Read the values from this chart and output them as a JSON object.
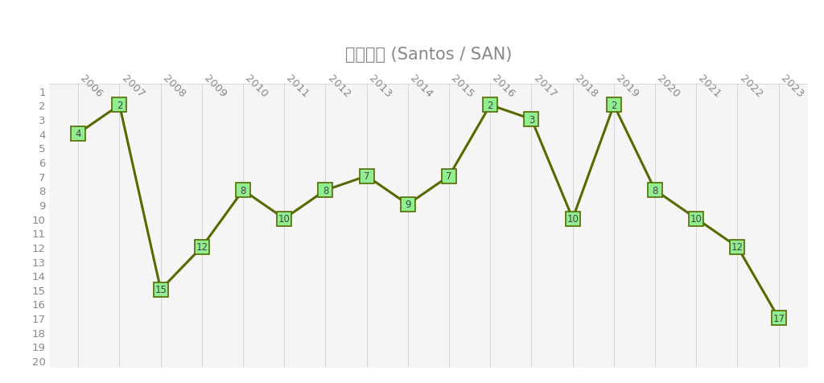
{
  "title": "サントス (Santos / SAN)",
  "years": [
    2006,
    2007,
    2008,
    2009,
    2010,
    2011,
    2012,
    2013,
    2014,
    2015,
    2016,
    2017,
    2018,
    2019,
    2020,
    2021,
    2022,
    2023
  ],
  "ranks": [
    4,
    2,
    15,
    12,
    8,
    10,
    8,
    7,
    9,
    7,
    2,
    3,
    10,
    2,
    8,
    10,
    12,
    17
  ],
  "ylim_min": 1,
  "ylim_max": 20,
  "line_color": "#556B00",
  "marker_bg_color": "#90EE90",
  "marker_edge_color": "#556B00",
  "label_text_color": "#444444",
  "bg_color": "#ffffff",
  "plot_bg_color": "#f5f5f5",
  "grid_color": "#d8d8d8",
  "title_fontsize": 15,
  "tick_label_fontsize": 9.5,
  "data_label_fontsize": 8.5
}
